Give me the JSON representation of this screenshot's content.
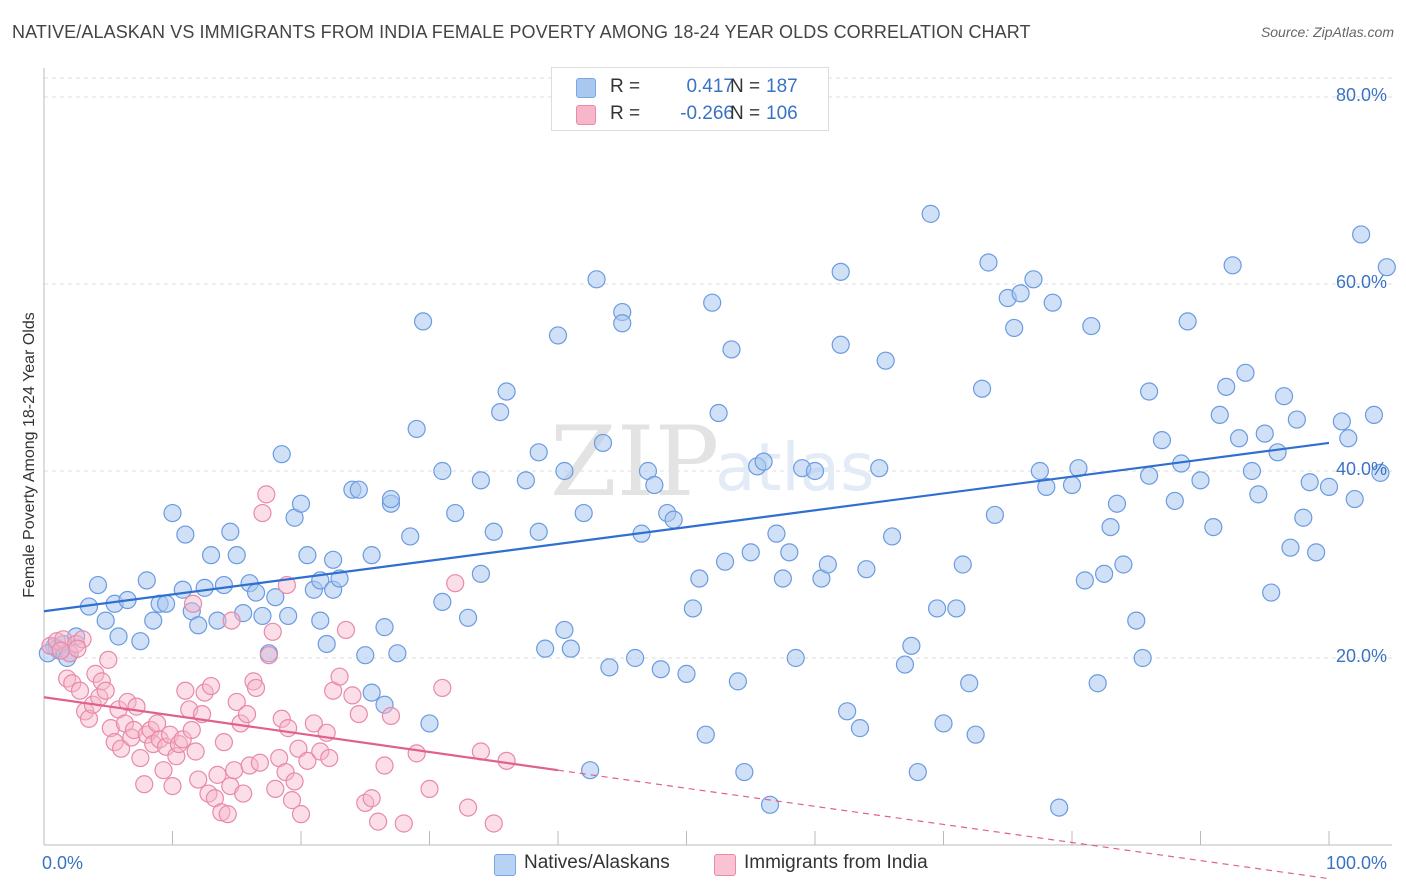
{
  "header": {
    "title": "NATIVE/ALASKAN VS IMMIGRANTS FROM INDIA FEMALE POVERTY AMONG 18-24 YEAR OLDS CORRELATION CHART",
    "source": "Source: ZipAtlas.com"
  },
  "legend_top": {
    "rows": [
      {
        "r_label": "R =",
        "r_value": "0.417",
        "n_label": "N =",
        "n_value": "187",
        "color": "#a9c8f0",
        "border": "#7aa6e0"
      },
      {
        "r_label": "R =",
        "r_value": "-0.266",
        "n_label": "N =",
        "n_value": "106",
        "color": "#f7b6c9",
        "border": "#e88aa8"
      }
    ]
  },
  "legend_bottom": {
    "items": [
      {
        "label": "Natives/Alaskans",
        "color": "#b8d2f3",
        "border": "#7aa6e0"
      },
      {
        "label": "Immigrants from India",
        "color": "#f9c3d3",
        "border": "#e88aa8"
      }
    ]
  },
  "watermark": {
    "zip": "ZIP",
    "atlas": "atlas"
  },
  "chart_data": {
    "type": "scatter",
    "title": "NATIVE/ALASKAN VS IMMIGRANTS FROM INDIA FEMALE POVERTY AMONG 18-24 YEAR OLDS CORRELATION CHART",
    "xlabel": "",
    "ylabel": "Female Poverty Among 18-24 Year Olds",
    "xlim": [
      0,
      100
    ],
    "ylim": [
      0,
      80
    ],
    "x_tick_labels": [
      "0.0%",
      "100.0%"
    ],
    "y_tick_labels": [
      "20.0%",
      "40.0%",
      "60.0%",
      "80.0%"
    ],
    "y_ticks": [
      20,
      40,
      60,
      80
    ],
    "colors": {
      "blue_fill": "#a9c8f0",
      "blue_stroke": "#6b9be0",
      "blue_line": "#2f6fcf",
      "pink_fill": "#f7b6c9",
      "pink_stroke": "#e88aa8",
      "pink_line": "#e06090"
    },
    "series": [
      {
        "name": "Natives/Alaskans",
        "r": 0.417,
        "n": 187,
        "trend": {
          "x0": 0,
          "y0": 25.0,
          "x1": 100,
          "y1": 43.0
        },
        "points": [
          [
            0.8,
            21.2
          ],
          [
            1.2,
            20.8
          ],
          [
            1.5,
            21.5
          ],
          [
            2.0,
            20.5
          ],
          [
            1.0,
            21.0
          ],
          [
            2.5,
            22.3
          ],
          [
            3.5,
            25.5
          ],
          [
            4.2,
            27.8
          ],
          [
            4.8,
            24.0
          ],
          [
            5.5,
            25.8
          ],
          [
            5.8,
            22.3
          ],
          [
            6.5,
            26.2
          ],
          [
            7.5,
            21.8
          ],
          [
            8.0,
            28.3
          ],
          [
            8.5,
            24.0
          ],
          [
            9.0,
            25.8
          ],
          [
            9.5,
            25.8
          ],
          [
            10.0,
            35.5
          ],
          [
            10.8,
            27.3
          ],
          [
            11.0,
            33.2
          ],
          [
            11.5,
            25.0
          ],
          [
            12.0,
            23.5
          ],
          [
            12.5,
            27.5
          ],
          [
            13.0,
            31.0
          ],
          [
            13.5,
            24.0
          ],
          [
            14.0,
            27.8
          ],
          [
            14.5,
            33.5
          ],
          [
            15.0,
            31.0
          ],
          [
            15.5,
            24.8
          ],
          [
            16.0,
            28.0
          ],
          [
            16.5,
            27.0
          ],
          [
            17.0,
            24.5
          ],
          [
            17.5,
            20.5
          ],
          [
            18.0,
            26.5
          ],
          [
            18.5,
            41.8
          ],
          [
            19.0,
            24.5
          ],
          [
            19.5,
            35.0
          ],
          [
            20.0,
            36.5
          ],
          [
            20.5,
            31.0
          ],
          [
            21.0,
            27.3
          ],
          [
            21.5,
            24.0
          ],
          [
            21.5,
            28.3
          ],
          [
            22.0,
            21.5
          ],
          [
            22.5,
            30.5
          ],
          [
            22.5,
            27.3
          ],
          [
            23.0,
            28.5
          ],
          [
            24.0,
            38.0
          ],
          [
            24.5,
            38.0
          ],
          [
            25.0,
            20.3
          ],
          [
            25.5,
            31.0
          ],
          [
            25.5,
            16.3
          ],
          [
            26.5,
            15.0
          ],
          [
            26.5,
            23.3
          ],
          [
            27.0,
            36.5
          ],
          [
            27.0,
            37.0
          ],
          [
            27.5,
            20.5
          ],
          [
            28.5,
            33.0
          ],
          [
            29.0,
            44.5
          ],
          [
            29.5,
            56.0
          ],
          [
            30.0,
            13.0
          ],
          [
            31.0,
            40.0
          ],
          [
            31.0,
            26.0
          ],
          [
            32.0,
            35.5
          ],
          [
            33.0,
            24.3
          ],
          [
            34.0,
            39.0
          ],
          [
            34.0,
            29.0
          ],
          [
            35.0,
            33.5
          ],
          [
            35.5,
            46.3
          ],
          [
            36.0,
            48.5
          ],
          [
            37.5,
            39.0
          ],
          [
            38.5,
            33.5
          ],
          [
            38.5,
            42.0
          ],
          [
            39.0,
            21.0
          ],
          [
            40.0,
            54.5
          ],
          [
            40.5,
            40.0
          ],
          [
            40.5,
            23.0
          ],
          [
            41.0,
            21.0
          ],
          [
            42.0,
            35.5
          ],
          [
            42.5,
            8.0
          ],
          [
            43.0,
            60.5
          ],
          [
            43.5,
            43.0
          ],
          [
            44.0,
            19.0
          ],
          [
            45.0,
            57.0
          ],
          [
            45.0,
            55.8
          ],
          [
            46.0,
            20.0
          ],
          [
            46.5,
            33.3
          ],
          [
            47.0,
            40.0
          ],
          [
            47.5,
            38.5
          ],
          [
            48.0,
            18.8
          ],
          [
            48.5,
            35.5
          ],
          [
            49.0,
            34.8
          ],
          [
            50.0,
            18.3
          ],
          [
            50.5,
            25.3
          ],
          [
            51.0,
            28.5
          ],
          [
            51.5,
            11.8
          ],
          [
            52.0,
            58.0
          ],
          [
            52.5,
            46.2
          ],
          [
            53.0,
            30.3
          ],
          [
            53.5,
            53.0
          ],
          [
            54.0,
            17.5
          ],
          [
            54.5,
            7.8
          ],
          [
            55.0,
            31.3
          ],
          [
            55.5,
            40.5
          ],
          [
            56.0,
            41.0
          ],
          [
            56.5,
            4.3
          ],
          [
            57.0,
            33.3
          ],
          [
            57.5,
            28.5
          ],
          [
            58.0,
            31.3
          ],
          [
            58.5,
            20.0
          ],
          [
            59.0,
            40.3
          ],
          [
            60.0,
            40.0
          ],
          [
            60.5,
            28.5
          ],
          [
            61.0,
            30.0
          ],
          [
            62.0,
            61.3
          ],
          [
            62.0,
            53.5
          ],
          [
            62.5,
            14.3
          ],
          [
            63.5,
            12.5
          ],
          [
            64.0,
            29.5
          ],
          [
            65.0,
            40.3
          ],
          [
            65.5,
            51.8
          ],
          [
            66.0,
            33.0
          ],
          [
            67.0,
            19.3
          ],
          [
            67.5,
            21.3
          ],
          [
            68.0,
            7.8
          ],
          [
            69.0,
            67.5
          ],
          [
            69.5,
            25.3
          ],
          [
            70.0,
            13.0
          ],
          [
            71.0,
            25.3
          ],
          [
            71.5,
            30.0
          ],
          [
            72.0,
            17.3
          ],
          [
            72.5,
            11.8
          ],
          [
            73.0,
            48.8
          ],
          [
            73.5,
            62.3
          ],
          [
            74.0,
            35.3
          ],
          [
            75.0,
            58.5
          ],
          [
            75.5,
            55.3
          ],
          [
            76.0,
            59.0
          ],
          [
            77.0,
            60.5
          ],
          [
            77.5,
            40.0
          ],
          [
            78.0,
            38.3
          ],
          [
            78.5,
            58.0
          ],
          [
            79.0,
            4.0
          ],
          [
            80.0,
            38.5
          ],
          [
            80.5,
            40.3
          ],
          [
            81.0,
            28.3
          ],
          [
            81.5,
            55.5
          ],
          [
            82.0,
            17.3
          ],
          [
            82.5,
            29.0
          ],
          [
            83.0,
            34.0
          ],
          [
            83.5,
            36.5
          ],
          [
            84.0,
            30.0
          ],
          [
            85.0,
            24.0
          ],
          [
            85.5,
            20.0
          ],
          [
            86.0,
            48.5
          ],
          [
            86.0,
            39.5
          ],
          [
            87.0,
            43.3
          ],
          [
            88.0,
            36.8
          ],
          [
            88.5,
            40.8
          ],
          [
            89.0,
            56.0
          ],
          [
            90.0,
            39.0
          ],
          [
            91.0,
            34.0
          ],
          [
            91.5,
            46.0
          ],
          [
            92.0,
            49.0
          ],
          [
            92.5,
            62.0
          ],
          [
            93.0,
            43.5
          ],
          [
            93.5,
            50.5
          ],
          [
            94.0,
            40.0
          ],
          [
            94.5,
            37.5
          ],
          [
            95.0,
            44.0
          ],
          [
            95.5,
            27.0
          ],
          [
            96.0,
            42.0
          ],
          [
            96.5,
            48.0
          ],
          [
            97.0,
            31.8
          ],
          [
            97.5,
            45.5
          ],
          [
            98.0,
            35.0
          ],
          [
            98.5,
            38.8
          ],
          [
            99.0,
            31.3
          ],
          [
            100.0,
            38.3
          ],
          [
            101.0,
            45.3
          ],
          [
            101.5,
            43.5
          ],
          [
            102.0,
            37.0
          ],
          [
            102.5,
            65.3
          ],
          [
            103.5,
            46.0
          ],
          [
            104.0,
            39.8
          ],
          [
            104.5,
            61.8
          ],
          [
            0.3,
            20.5
          ],
          [
            1.8,
            20.0
          ]
        ]
      },
      {
        "name": "Immigrants from India",
        "r": -0.266,
        "n": 106,
        "trend": {
          "x0": 0,
          "y0": 15.8,
          "x1": 40,
          "y1": 8.0,
          "dash_x1": 100,
          "dash_y1": -3.6
        },
        "points": [
          [
            0.5,
            21.3
          ],
          [
            1.0,
            21.8
          ],
          [
            1.5,
            22.0
          ],
          [
            2.0,
            20.5
          ],
          [
            2.5,
            21.5
          ],
          [
            1.3,
            20.8
          ],
          [
            1.8,
            17.8
          ],
          [
            2.2,
            17.3
          ],
          [
            2.8,
            16.5
          ],
          [
            3.0,
            22.0
          ],
          [
            3.2,
            14.3
          ],
          [
            3.5,
            13.5
          ],
          [
            3.8,
            15.0
          ],
          [
            4.0,
            18.3
          ],
          [
            4.3,
            15.8
          ],
          [
            4.5,
            17.5
          ],
          [
            4.8,
            16.5
          ],
          [
            5.0,
            19.8
          ],
          [
            5.2,
            12.5
          ],
          [
            5.5,
            11.0
          ],
          [
            5.8,
            14.5
          ],
          [
            6.0,
            10.3
          ],
          [
            6.3,
            13.0
          ],
          [
            6.5,
            15.3
          ],
          [
            6.8,
            11.5
          ],
          [
            7.0,
            12.3
          ],
          [
            7.2,
            14.8
          ],
          [
            7.5,
            9.3
          ],
          [
            7.8,
            6.5
          ],
          [
            8.0,
            11.8
          ],
          [
            8.3,
            12.3
          ],
          [
            8.5,
            10.8
          ],
          [
            8.8,
            13.0
          ],
          [
            9.0,
            11.3
          ],
          [
            9.3,
            8.0
          ],
          [
            9.5,
            10.5
          ],
          [
            9.8,
            11.8
          ],
          [
            10.0,
            6.3
          ],
          [
            10.3,
            9.5
          ],
          [
            10.5,
            10.8
          ],
          [
            10.8,
            11.3
          ],
          [
            11.0,
            16.5
          ],
          [
            11.3,
            14.5
          ],
          [
            11.5,
            12.3
          ],
          [
            11.8,
            10.0
          ],
          [
            12.0,
            7.0
          ],
          [
            12.3,
            14.0
          ],
          [
            12.5,
            16.3
          ],
          [
            12.8,
            5.5
          ],
          [
            13.0,
            17.0
          ],
          [
            13.3,
            5.0
          ],
          [
            13.5,
            7.5
          ],
          [
            13.8,
            3.5
          ],
          [
            14.0,
            11.0
          ],
          [
            14.3,
            3.3
          ],
          [
            14.5,
            6.3
          ],
          [
            14.8,
            8.0
          ],
          [
            15.0,
            15.3
          ],
          [
            15.3,
            13.0
          ],
          [
            15.5,
            5.5
          ],
          [
            15.8,
            14.0
          ],
          [
            16.0,
            8.5
          ],
          [
            16.3,
            17.5
          ],
          [
            16.5,
            16.8
          ],
          [
            16.8,
            8.8
          ],
          [
            17.0,
            35.5
          ],
          [
            17.3,
            37.5
          ],
          [
            17.5,
            20.3
          ],
          [
            17.8,
            22.8
          ],
          [
            18.0,
            6.0
          ],
          [
            18.3,
            9.3
          ],
          [
            18.5,
            13.5
          ],
          [
            18.8,
            7.8
          ],
          [
            19.0,
            12.5
          ],
          [
            19.3,
            4.8
          ],
          [
            19.5,
            6.8
          ],
          [
            19.8,
            10.3
          ],
          [
            20.0,
            3.3
          ],
          [
            20.5,
            9.0
          ],
          [
            21.0,
            13.0
          ],
          [
            21.5,
            10.0
          ],
          [
            22.0,
            12.0
          ],
          [
            22.5,
            16.5
          ],
          [
            23.0,
            18.0
          ],
          [
            23.5,
            23.0
          ],
          [
            24.0,
            16.0
          ],
          [
            24.5,
            14.0
          ],
          [
            25.0,
            4.5
          ],
          [
            25.5,
            5.0
          ],
          [
            26.0,
            2.5
          ],
          [
            26.5,
            8.5
          ],
          [
            27.0,
            13.8
          ],
          [
            28.0,
            2.3
          ],
          [
            29.0,
            9.8
          ],
          [
            30.0,
            6.0
          ],
          [
            31.0,
            16.8
          ],
          [
            32.0,
            28.0
          ],
          [
            33.0,
            4.0
          ],
          [
            34.0,
            10.0
          ],
          [
            35.0,
            2.3
          ],
          [
            36.0,
            9.0
          ],
          [
            22.2,
            9.3
          ],
          [
            18.9,
            27.8
          ],
          [
            14.6,
            24.0
          ],
          [
            11.6,
            25.8
          ],
          [
            2.6,
            21.0
          ]
        ]
      }
    ]
  }
}
